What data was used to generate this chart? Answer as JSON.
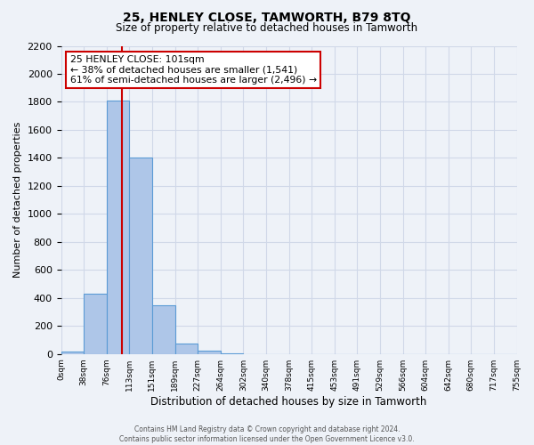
{
  "title": "25, HENLEY CLOSE, TAMWORTH, B79 8TQ",
  "subtitle": "Size of property relative to detached houses in Tamworth",
  "xlabel": "Distribution of detached houses by size in Tamworth",
  "ylabel": "Number of detached properties",
  "bin_labels": [
    "0sqm",
    "38sqm",
    "76sqm",
    "113sqm",
    "151sqm",
    "189sqm",
    "227sqm",
    "264sqm",
    "302sqm",
    "340sqm",
    "378sqm",
    "415sqm",
    "453sqm",
    "491sqm",
    "529sqm",
    "566sqm",
    "604sqm",
    "642sqm",
    "680sqm",
    "717sqm",
    "755sqm"
  ],
  "bar_heights": [
    15,
    430,
    1810,
    1400,
    350,
    75,
    25,
    5,
    0,
    0,
    0,
    0,
    0,
    0,
    0,
    0,
    0,
    0,
    0,
    0
  ],
  "bar_color": "#aec6e8",
  "bar_edge_color": "#5b9bd5",
  "vline_color": "#cc0000",
  "annotation_line1": "25 HENLEY CLOSE: 101sqm",
  "annotation_line2": "← 38% of detached houses are smaller (1,541)",
  "annotation_line3": "61% of semi-detached houses are larger (2,496) →",
  "annotation_box_color": "#ffffff",
  "annotation_box_edge": "#cc0000",
  "ylim": [
    0,
    2200
  ],
  "yticks": [
    0,
    200,
    400,
    600,
    800,
    1000,
    1200,
    1400,
    1600,
    1800,
    2000,
    2200
  ],
  "grid_color": "#d0d8e8",
  "bg_color": "#eef2f8",
  "footer_line1": "Contains HM Land Registry data © Crown copyright and database right 2024.",
  "footer_line2": "Contains public sector information licensed under the Open Government Licence v3.0."
}
